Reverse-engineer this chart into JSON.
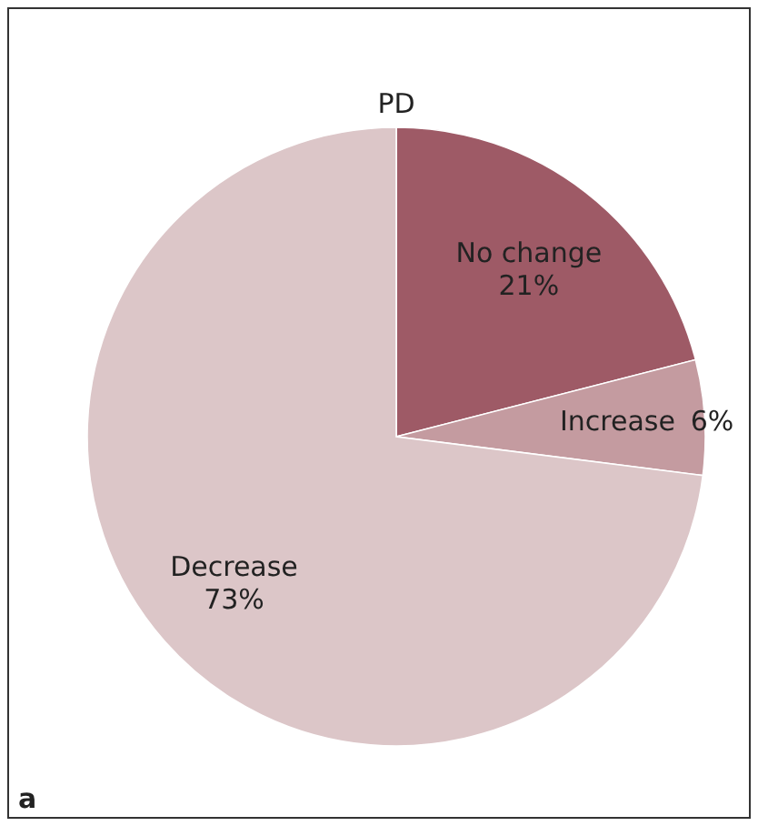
{
  "chart_data": {
    "type": "pie",
    "title": "PD",
    "categories": [
      "No change",
      "Increase",
      "Decrease"
    ],
    "values": [
      21,
      6,
      73
    ],
    "colors": [
      "#9e5a66",
      "#c49ba0",
      "#dcc6c8"
    ],
    "value_labels": [
      "21%",
      "6%",
      "73%"
    ],
    "annotations": [
      "a"
    ]
  }
}
